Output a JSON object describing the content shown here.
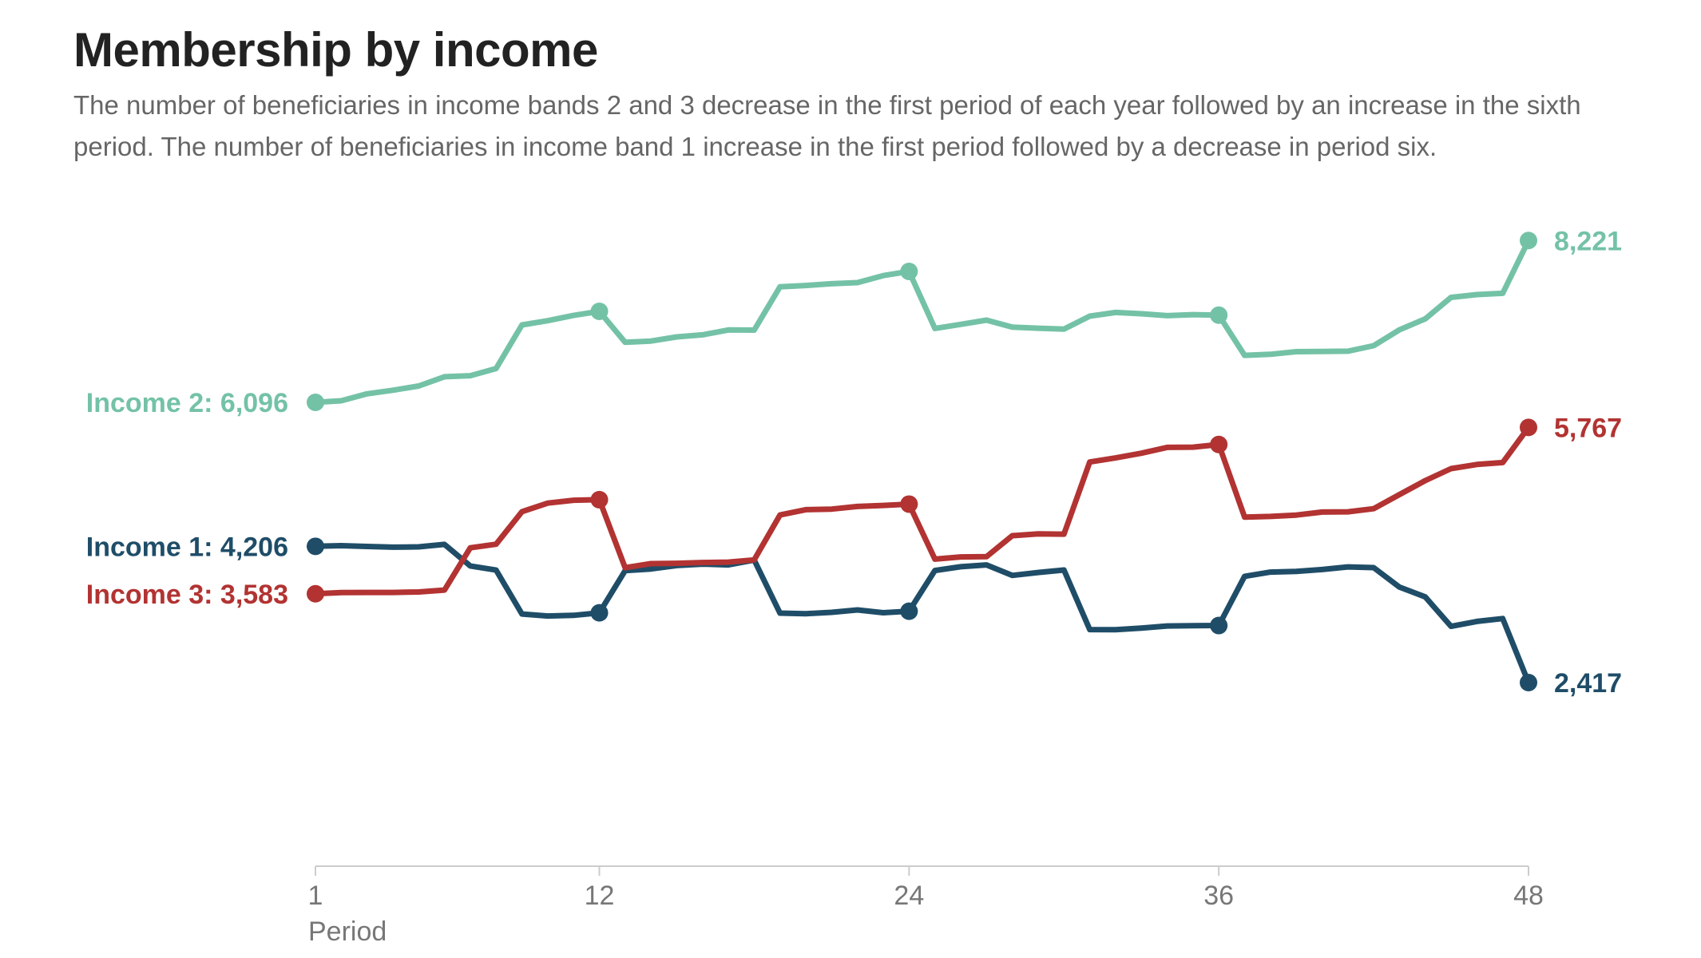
{
  "title": "Membership by income",
  "subtitle": "The number of beneficiaries in income bands 2 and 3 decrease in the first period of each year followed by an increase in the sixth period. The number of beneficiaries in income band 1 increase in the first period followed by a decrease in period six.",
  "chart_data": {
    "type": "line",
    "xlabel": "Period",
    "ylabel": "",
    "xlim": [
      1,
      48
    ],
    "ylim": [
      0,
      9000
    ],
    "grid": false,
    "legend": "direct labels at line ends",
    "x_ticks": [
      1,
      12,
      24,
      36,
      48
    ],
    "x": [
      1,
      2,
      3,
      4,
      5,
      6,
      7,
      8,
      9,
      10,
      11,
      12,
      13,
      14,
      15,
      16,
      17,
      18,
      19,
      20,
      21,
      22,
      23,
      24,
      25,
      26,
      27,
      28,
      29,
      30,
      31,
      32,
      33,
      34,
      35,
      36,
      37,
      38,
      39,
      40,
      41,
      42,
      43,
      44,
      45,
      46,
      47,
      48
    ],
    "highlight_x": [
      1,
      12,
      24,
      36,
      48
    ],
    "series": [
      {
        "name": "Income 2",
        "start_label": "Income 2: 6,096",
        "end_label": "8,221",
        "color": "#74c2a6",
        "values": [
          6096,
          6117,
          6208,
          6255,
          6311,
          6432,
          6446,
          6540,
          7113,
          7168,
          7237,
          7291,
          6884,
          6901,
          6955,
          6983,
          7047,
          7045,
          7613,
          7630,
          7654,
          7668,
          7760,
          7815,
          7067,
          7120,
          7176,
          7083,
          7070,
          7057,
          7228,
          7276,
          7259,
          7234,
          7248,
          7241,
          6713,
          6727,
          6762,
          6765,
          6768,
          6840,
          7049,
          7192,
          7474,
          7511,
          7528,
          8221
        ]
      },
      {
        "name": "Income 1",
        "start_label": "Income 1: 4,206",
        "end_label": "2,417",
        "color": "#1f4d68",
        "values": [
          4206,
          4215,
          4204,
          4195,
          4199,
          4231,
          3948,
          3894,
          3317,
          3291,
          3300,
          3333,
          3887,
          3909,
          3954,
          3972,
          3962,
          4026,
          3329,
          3322,
          3339,
          3371,
          3334,
          3354,
          3889,
          3938,
          3962,
          3824,
          3862,
          3895,
          3113,
          3111,
          3132,
          3160,
          3163,
          3166,
          3812,
          3868,
          3876,
          3901,
          3936,
          3926,
          3671,
          3542,
          3155,
          3220,
          3258,
          2417
        ]
      },
      {
        "name": "Income 3",
        "start_label": "Income 3: 3,583",
        "end_label": "5,767",
        "color": "#b23332",
        "values": [
          3583,
          3598,
          3600,
          3600,
          3607,
          3632,
          4186,
          4233,
          4661,
          4773,
          4811,
          4818,
          3925,
          3979,
          3983,
          3993,
          3999,
          4028,
          4617,
          4687,
          4695,
          4729,
          4743,
          4760,
          4037,
          4067,
          4070,
          4346,
          4369,
          4365,
          5313,
          5367,
          5428,
          5505,
          5508,
          5543,
          4590,
          4598,
          4616,
          4656,
          4659,
          4700,
          4885,
          5069,
          5226,
          5281,
          5306,
          5767
        ]
      }
    ]
  }
}
